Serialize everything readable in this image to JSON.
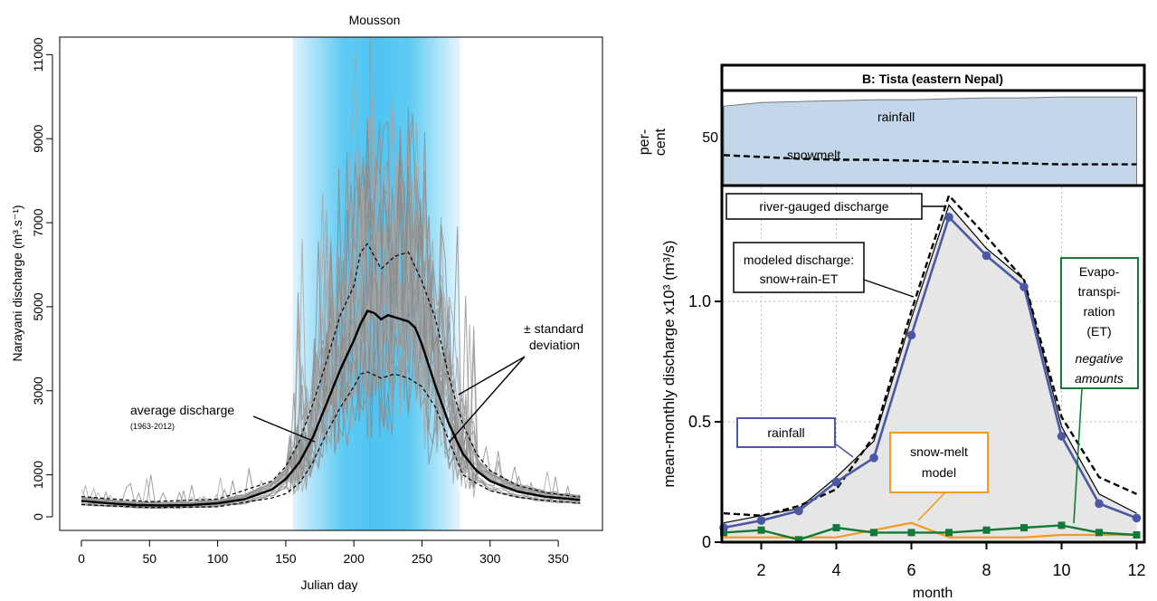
{
  "left_chart": {
    "title": "Mousson",
    "xlabel": "Julian day",
    "ylabel": "Narayani discharge (m³.s⁻¹)",
    "x_ticks": [
      "0",
      "50",
      "100",
      "150",
      "200",
      "250",
      "300",
      "350"
    ],
    "y_ticks": [
      "0",
      "1000",
      "3000",
      "5000",
      "7000",
      "9000",
      "11000"
    ],
    "annotation_avg": "average discharge",
    "annotation_avg_years": "(1963-2012)",
    "annotation_sd_line1": "± standard",
    "annotation_sd_line2": "deviation"
  },
  "right_chart": {
    "panel_title": "B: Tista (eastern Nepal)",
    "top_ylabel_line1": "per-",
    "top_ylabel_line2": "cent",
    "top_tick": "50",
    "label_rainfall_area": "rainfall",
    "label_snowmelt_area": "snowmelt",
    "ylabel": "mean-monthly discharge x10³ (m³/s)",
    "xlabel": "month",
    "x_ticks": [
      "2",
      "4",
      "6",
      "8",
      "10",
      "12"
    ],
    "y_ticks": [
      "0",
      "0.5",
      "1.0"
    ],
    "box_river": "river-gauged discharge",
    "box_modeled_line1": "modeled discharge:",
    "box_modeled_line2": "snow+rain-ET",
    "box_rainfall": "rainfall",
    "box_snowmelt_line1": "snow-melt",
    "box_snowmelt_line2": "model",
    "box_et_line1": "Evapo-",
    "box_et_line2": "transpi-",
    "box_et_line3": "ration",
    "box_et_line4": "(ET)",
    "box_et_line5": "negative",
    "box_et_line6": "amounts"
  },
  "chart_data": [
    {
      "type": "line",
      "title": "Mousson",
      "xlabel": "Julian day",
      "ylabel": "Narayani discharge (m³.s⁻¹)",
      "xlim": [
        0,
        366
      ],
      "ylim": [
        0,
        12000
      ],
      "shaded_band": {
        "label": "Mousson",
        "x_range": [
          155,
          278
        ],
        "center": 212
      },
      "series": [
        {
          "name": "average discharge",
          "x": [
            0,
            20,
            40,
            60,
            80,
            100,
            120,
            140,
            150,
            160,
            170,
            180,
            190,
            200,
            205,
            210,
            215,
            220,
            225,
            230,
            235,
            240,
            245,
            250,
            255,
            260,
            270,
            280,
            290,
            300,
            320,
            340,
            366
          ],
          "values": [
            380,
            320,
            280,
            270,
            280,
            320,
            420,
            650,
            900,
            1300,
            1900,
            2700,
            3500,
            4200,
            4600,
            4900,
            4850,
            4700,
            4800,
            4750,
            4700,
            4650,
            4500,
            4100,
            3600,
            3100,
            2200,
            1500,
            1100,
            850,
            600,
            480,
            400
          ]
        },
        {
          "name": "± standard deviation (upper)",
          "x": [
            0,
            50,
            100,
            140,
            150,
            160,
            170,
            180,
            190,
            200,
            205,
            210,
            220,
            230,
            240,
            250,
            260,
            270,
            280,
            290,
            300,
            320,
            340,
            366
          ],
          "values": [
            480,
            360,
            420,
            850,
            1200,
            1800,
            2700,
            3700,
            4800,
            5500,
            6300,
            6500,
            5900,
            6200,
            6300,
            5600,
            4700,
            3300,
            2200,
            1500,
            1100,
            750,
            580,
            470
          ]
        },
        {
          "name": "± standard deviation (lower)",
          "x": [
            0,
            50,
            100,
            140,
            150,
            160,
            170,
            180,
            190,
            200,
            205,
            210,
            220,
            230,
            240,
            250,
            260,
            270,
            280,
            290,
            300,
            320,
            340,
            366
          ],
          "values": [
            290,
            220,
            240,
            450,
            550,
            800,
            1300,
            2000,
            2600,
            3100,
            3400,
            3450,
            3300,
            3400,
            3300,
            3100,
            2600,
            1800,
            1000,
            800,
            620,
            470,
            390,
            330
          ]
        }
      ]
    },
    {
      "type": "line",
      "title": "B: Tista (eastern Nepal)",
      "xlabel": "month",
      "ylabel": "mean-monthly discharge x10³ (m³/s)",
      "xlim": [
        1,
        12
      ],
      "ylim": [
        0,
        1.5
      ],
      "x": [
        1,
        2,
        3,
        4,
        5,
        6,
        7,
        8,
        9,
        10,
        11,
        12
      ],
      "series": [
        {
          "name": "rainfall",
          "values": [
            0.06,
            0.09,
            0.13,
            0.25,
            0.35,
            0.86,
            1.35,
            1.19,
            1.06,
            0.44,
            0.16,
            0.1
          ]
        },
        {
          "name": "snow-melt model",
          "values": [
            0.02,
            0.02,
            0.02,
            0.02,
            0.05,
            0.08,
            0.02,
            0.02,
            0.02,
            0.03,
            0.03,
            0.03
          ]
        },
        {
          "name": "Evapotranspiration (ET) negative amounts",
          "values": [
            0.04,
            0.05,
            0.01,
            0.06,
            0.04,
            0.04,
            0.04,
            0.05,
            0.06,
            0.07,
            0.04,
            0.03
          ]
        },
        {
          "name": "modeled discharge: snow+rain-ET",
          "values": [
            0.08,
            0.11,
            0.14,
            0.27,
            0.42,
            0.93,
            1.4,
            1.22,
            1.09,
            0.48,
            0.2,
            0.12
          ]
        },
        {
          "name": "river-gauged discharge",
          "values": [
            0.12,
            0.11,
            0.15,
            0.22,
            0.44,
            0.96,
            1.44,
            1.27,
            1.09,
            0.52,
            0.27,
            0.2
          ]
        }
      ],
      "top_panel": {
        "ylabel": "per-cent",
        "tick": "50",
        "series": [
          {
            "name": "rainfall",
            "values": [
              85,
              89,
              90,
              91,
              92,
              92,
              93,
              94,
              94,
              95,
              95,
              95
            ]
          },
          {
            "name": "snowmelt",
            "values": [
              32,
              30,
              28,
              27,
              27,
              26,
              25,
              24,
              23,
              22,
              22,
              22
            ]
          }
        ]
      }
    }
  ]
}
